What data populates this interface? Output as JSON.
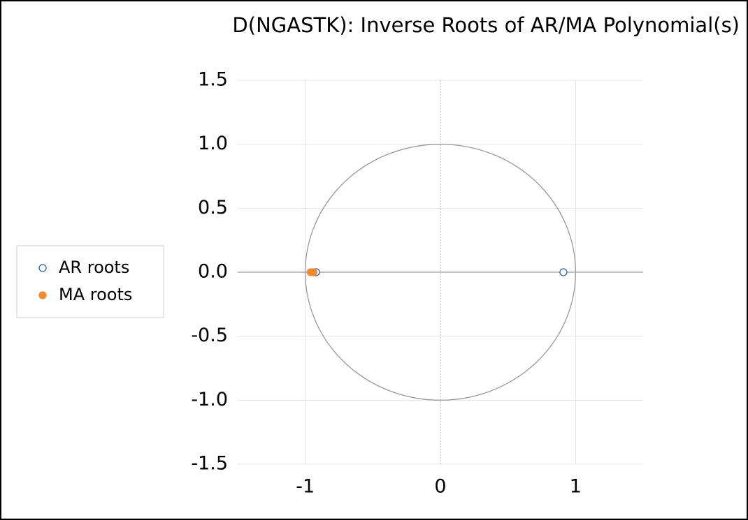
{
  "chart_data": {
    "type": "scatter",
    "title": "D(NGASTK): Inverse Roots of AR/MA Polynomial(s)",
    "series": [
      {
        "name": "AR roots",
        "color": "#2f5faa",
        "filled": false,
        "x": [
          -0.92,
          0.91
        ],
        "values": [
          0,
          0
        ]
      },
      {
        "name": "MA roots",
        "color": "#f08a30",
        "filled": true,
        "x": [
          -0.96,
          -0.94
        ],
        "values": [
          0,
          0
        ]
      }
    ],
    "xlim": [
      -1.5,
      1.5
    ],
    "xticks": [
      -1,
      0,
      1
    ],
    "ylim": [
      -1.5,
      1.5
    ],
    "yticks": [
      1.5,
      {
        "value": 1,
        "label": "1.0"
      },
      0.5,
      {
        "value": 0,
        "label": "0.0"
      },
      -0.5,
      {
        "value": -1,
        "label": "-1.0"
      },
      -1.5
    ],
    "grid": true,
    "legend": "left"
  }
}
